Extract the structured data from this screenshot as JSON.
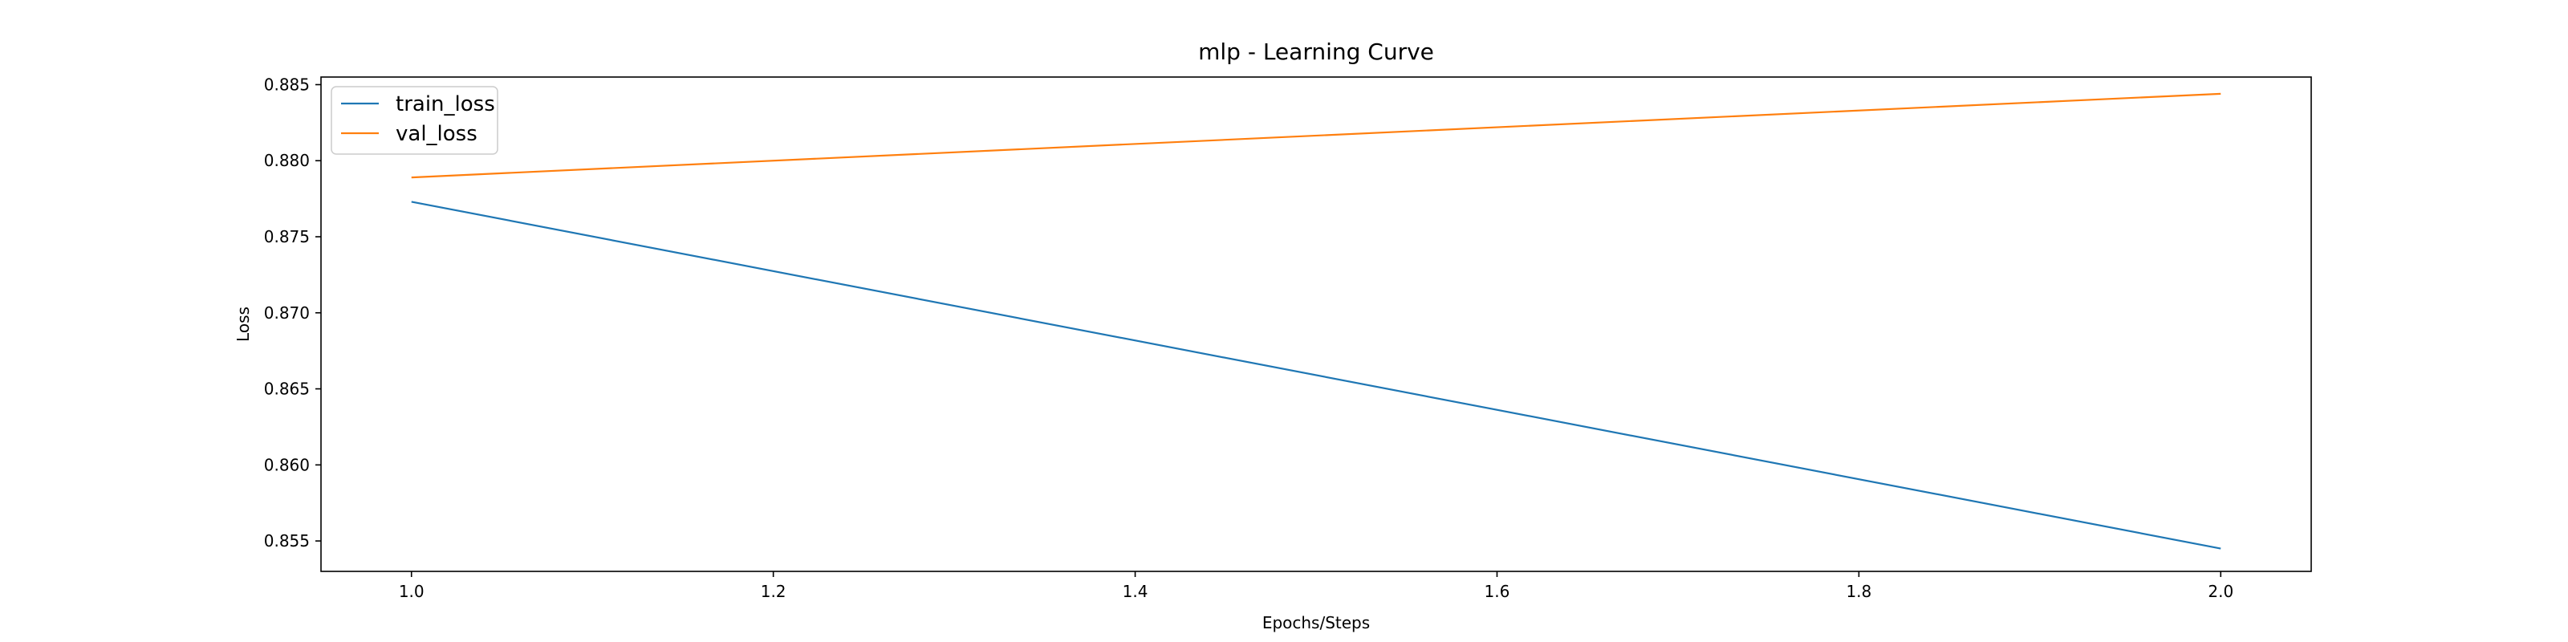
{
  "chart_data": {
    "type": "line",
    "title": "mlp - Learning Curve",
    "xlabel": "Epochs/Steps",
    "ylabel": "Loss",
    "xlim": [
      0.95,
      2.05
    ],
    "ylim": [
      0.853,
      0.8855
    ],
    "xticks": [
      1.0,
      1.2,
      1.4,
      1.6,
      1.8,
      2.0
    ],
    "xtick_labels": [
      "1.0",
      "1.2",
      "1.4",
      "1.6",
      "1.8",
      "2.0"
    ],
    "yticks": [
      0.855,
      0.86,
      0.865,
      0.87,
      0.875,
      0.88,
      0.885
    ],
    "ytick_labels": [
      "0.855",
      "0.860",
      "0.865",
      "0.870",
      "0.875",
      "0.880",
      "0.885"
    ],
    "grid": false,
    "legend_position": "upper left",
    "series": [
      {
        "name": "train_loss",
        "color": "#1f77b4",
        "x": [
          1,
          2
        ],
        "y": [
          0.8773,
          0.8545
        ]
      },
      {
        "name": "val_loss",
        "color": "#ff7f0e",
        "x": [
          1,
          2
        ],
        "y": [
          0.8789,
          0.8844
        ]
      }
    ]
  }
}
